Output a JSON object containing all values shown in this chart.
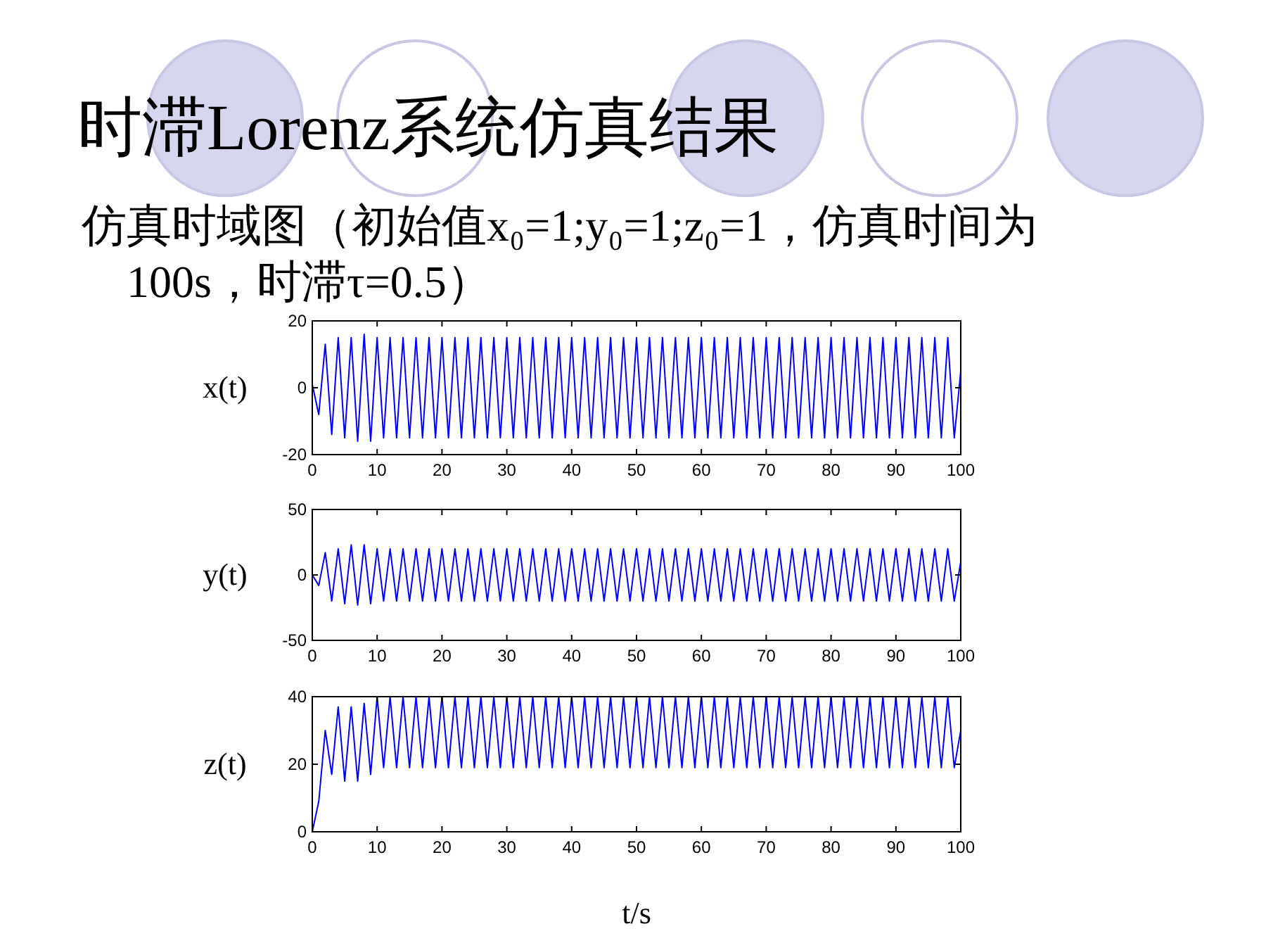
{
  "chart_data": [
    {
      "type": "line",
      "title": "时滞Lorenz系统仿真结果",
      "subtitle": "仿真时域图（初始值x₀=1;y₀=1;z₀=1，仿真时间为100s，时滞τ=0.5）",
      "ylabel": "x(t)",
      "xlim": [
        0,
        100
      ],
      "xticks": [
        0,
        10,
        20,
        30,
        40,
        50,
        60,
        70,
        80,
        90,
        100
      ],
      "ylim": [
        -20,
        20
      ],
      "yticks": [
        -20,
        0,
        20
      ],
      "series": [
        {
          "color": "#0000ff",
          "x": [
            0,
            1,
            2,
            3,
            4,
            5,
            6,
            7,
            8,
            9,
            10,
            11,
            12,
            13,
            14,
            15,
            16,
            17,
            18,
            19,
            20,
            21,
            22,
            23,
            24,
            25,
            26,
            27,
            28,
            29,
            30,
            31,
            32,
            33,
            34,
            35,
            36,
            37,
            38,
            39,
            40,
            41,
            42,
            43,
            44,
            45,
            46,
            47,
            48,
            49,
            50,
            51,
            52,
            53,
            54,
            55,
            56,
            57,
            58,
            59,
            60,
            61,
            62,
            63,
            64,
            65,
            66,
            67,
            68,
            69,
            70,
            71,
            72,
            73,
            74,
            75,
            76,
            77,
            78,
            79,
            80,
            81,
            82,
            83,
            84,
            85,
            86,
            87,
            88,
            89,
            90,
            91,
            92,
            93,
            94,
            95,
            96,
            97,
            98,
            99,
            100
          ],
          "values": [
            1,
            -8,
            13,
            -14,
            15,
            -15,
            15,
            -16,
            16,
            -16,
            15,
            -15,
            15,
            -15,
            15,
            -15,
            15,
            -15,
            15,
            -15,
            15,
            -15,
            15,
            -15,
            15,
            -15,
            15,
            -15,
            15,
            -15,
            15,
            -15,
            15,
            -15,
            15,
            -15,
            15,
            -15,
            15,
            -15,
            15,
            -15,
            15,
            -15,
            15,
            -15,
            15,
            -15,
            15,
            -15,
            15,
            -15,
            15,
            -15,
            15,
            -15,
            15,
            -15,
            15,
            -15,
            15,
            -15,
            15,
            -15,
            15,
            -15,
            15,
            -15,
            15,
            -15,
            15,
            -15,
            15,
            -15,
            15,
            -15,
            15,
            -15,
            15,
            -15,
            15,
            -15,
            15,
            -15,
            15,
            -15,
            15,
            -15,
            15,
            -15,
            15,
            -15,
            15,
            -15,
            15,
            -15,
            15,
            -15,
            15,
            -15,
            5
          ]
        }
      ]
    },
    {
      "type": "line",
      "ylabel": "y(t)",
      "xlim": [
        0,
        100
      ],
      "xticks": [
        0,
        10,
        20,
        30,
        40,
        50,
        60,
        70,
        80,
        90,
        100
      ],
      "ylim": [
        -50,
        50
      ],
      "yticks": [
        -50,
        0,
        50
      ],
      "series": [
        {
          "color": "#0000ff",
          "x": [
            0,
            1,
            2,
            3,
            4,
            5,
            6,
            7,
            8,
            9,
            10,
            11,
            12,
            13,
            14,
            15,
            16,
            17,
            18,
            19,
            20,
            21,
            22,
            23,
            24,
            25,
            26,
            27,
            28,
            29,
            30,
            31,
            32,
            33,
            34,
            35,
            36,
            37,
            38,
            39,
            40,
            41,
            42,
            43,
            44,
            45,
            46,
            47,
            48,
            49,
            50,
            51,
            52,
            53,
            54,
            55,
            56,
            57,
            58,
            59,
            60,
            61,
            62,
            63,
            64,
            65,
            66,
            67,
            68,
            69,
            70,
            71,
            72,
            73,
            74,
            75,
            76,
            77,
            78,
            79,
            80,
            81,
            82,
            83,
            84,
            85,
            86,
            87,
            88,
            89,
            90,
            91,
            92,
            93,
            94,
            95,
            96,
            97,
            98,
            99,
            100
          ],
          "values": [
            0,
            -8,
            17,
            -20,
            20,
            -22,
            23,
            -23,
            23,
            -22,
            20,
            -20,
            20,
            -20,
            20,
            -20,
            20,
            -20,
            20,
            -20,
            20,
            -20,
            20,
            -20,
            20,
            -20,
            20,
            -20,
            20,
            -20,
            20,
            -20,
            20,
            -20,
            20,
            -20,
            20,
            -20,
            20,
            -20,
            20,
            -20,
            20,
            -20,
            20,
            -20,
            20,
            -20,
            20,
            -20,
            20,
            -20,
            20,
            -20,
            20,
            -20,
            20,
            -20,
            20,
            -20,
            20,
            -20,
            20,
            -20,
            20,
            -20,
            20,
            -20,
            20,
            -20,
            20,
            -20,
            20,
            -20,
            20,
            -20,
            20,
            -20,
            20,
            -20,
            20,
            -20,
            20,
            -20,
            20,
            -20,
            20,
            -20,
            20,
            -20,
            20,
            -20,
            20,
            -20,
            20,
            -20,
            20,
            -20,
            20,
            -20,
            10
          ]
        }
      ]
    },
    {
      "type": "line",
      "ylabel": "z(t)",
      "xlabel": "t/s",
      "xlim": [
        0,
        100
      ],
      "xticks": [
        0,
        10,
        20,
        30,
        40,
        50,
        60,
        70,
        80,
        90,
        100
      ],
      "ylim": [
        0,
        40
      ],
      "yticks": [
        0,
        20,
        40
      ],
      "series": [
        {
          "color": "#0000ff",
          "x": [
            0,
            1,
            2,
            3,
            4,
            5,
            6,
            7,
            8,
            9,
            10,
            11,
            12,
            13,
            14,
            15,
            16,
            17,
            18,
            19,
            20,
            21,
            22,
            23,
            24,
            25,
            26,
            27,
            28,
            29,
            30,
            31,
            32,
            33,
            34,
            35,
            36,
            37,
            38,
            39,
            40,
            41,
            42,
            43,
            44,
            45,
            46,
            47,
            48,
            49,
            50,
            51,
            52,
            53,
            54,
            55,
            56,
            57,
            58,
            59,
            60,
            61,
            62,
            63,
            64,
            65,
            66,
            67,
            68,
            69,
            70,
            71,
            72,
            73,
            74,
            75,
            76,
            77,
            78,
            79,
            80,
            81,
            82,
            83,
            84,
            85,
            86,
            87,
            88,
            89,
            90,
            91,
            92,
            93,
            94,
            95,
            96,
            97,
            98,
            99,
            100
          ],
          "values": [
            0,
            9,
            30,
            17,
            37,
            15,
            37,
            15,
            38,
            17,
            40,
            19,
            40,
            19,
            40,
            19,
            40,
            19,
            40,
            19,
            40,
            19,
            40,
            19,
            40,
            19,
            40,
            19,
            40,
            19,
            40,
            19,
            40,
            19,
            40,
            19,
            40,
            19,
            40,
            19,
            40,
            19,
            40,
            19,
            40,
            19,
            40,
            19,
            40,
            19,
            40,
            19,
            40,
            19,
            40,
            19,
            40,
            19,
            40,
            19,
            40,
            19,
            40,
            19,
            40,
            19,
            40,
            19,
            40,
            19,
            40,
            19,
            40,
            19,
            40,
            19,
            40,
            19,
            40,
            19,
            40,
            19,
            40,
            19,
            40,
            19,
            40,
            19,
            40,
            19,
            40,
            19,
            40,
            19,
            40,
            19,
            40,
            19,
            40,
            19,
            30
          ]
        }
      ]
    }
  ]
}
